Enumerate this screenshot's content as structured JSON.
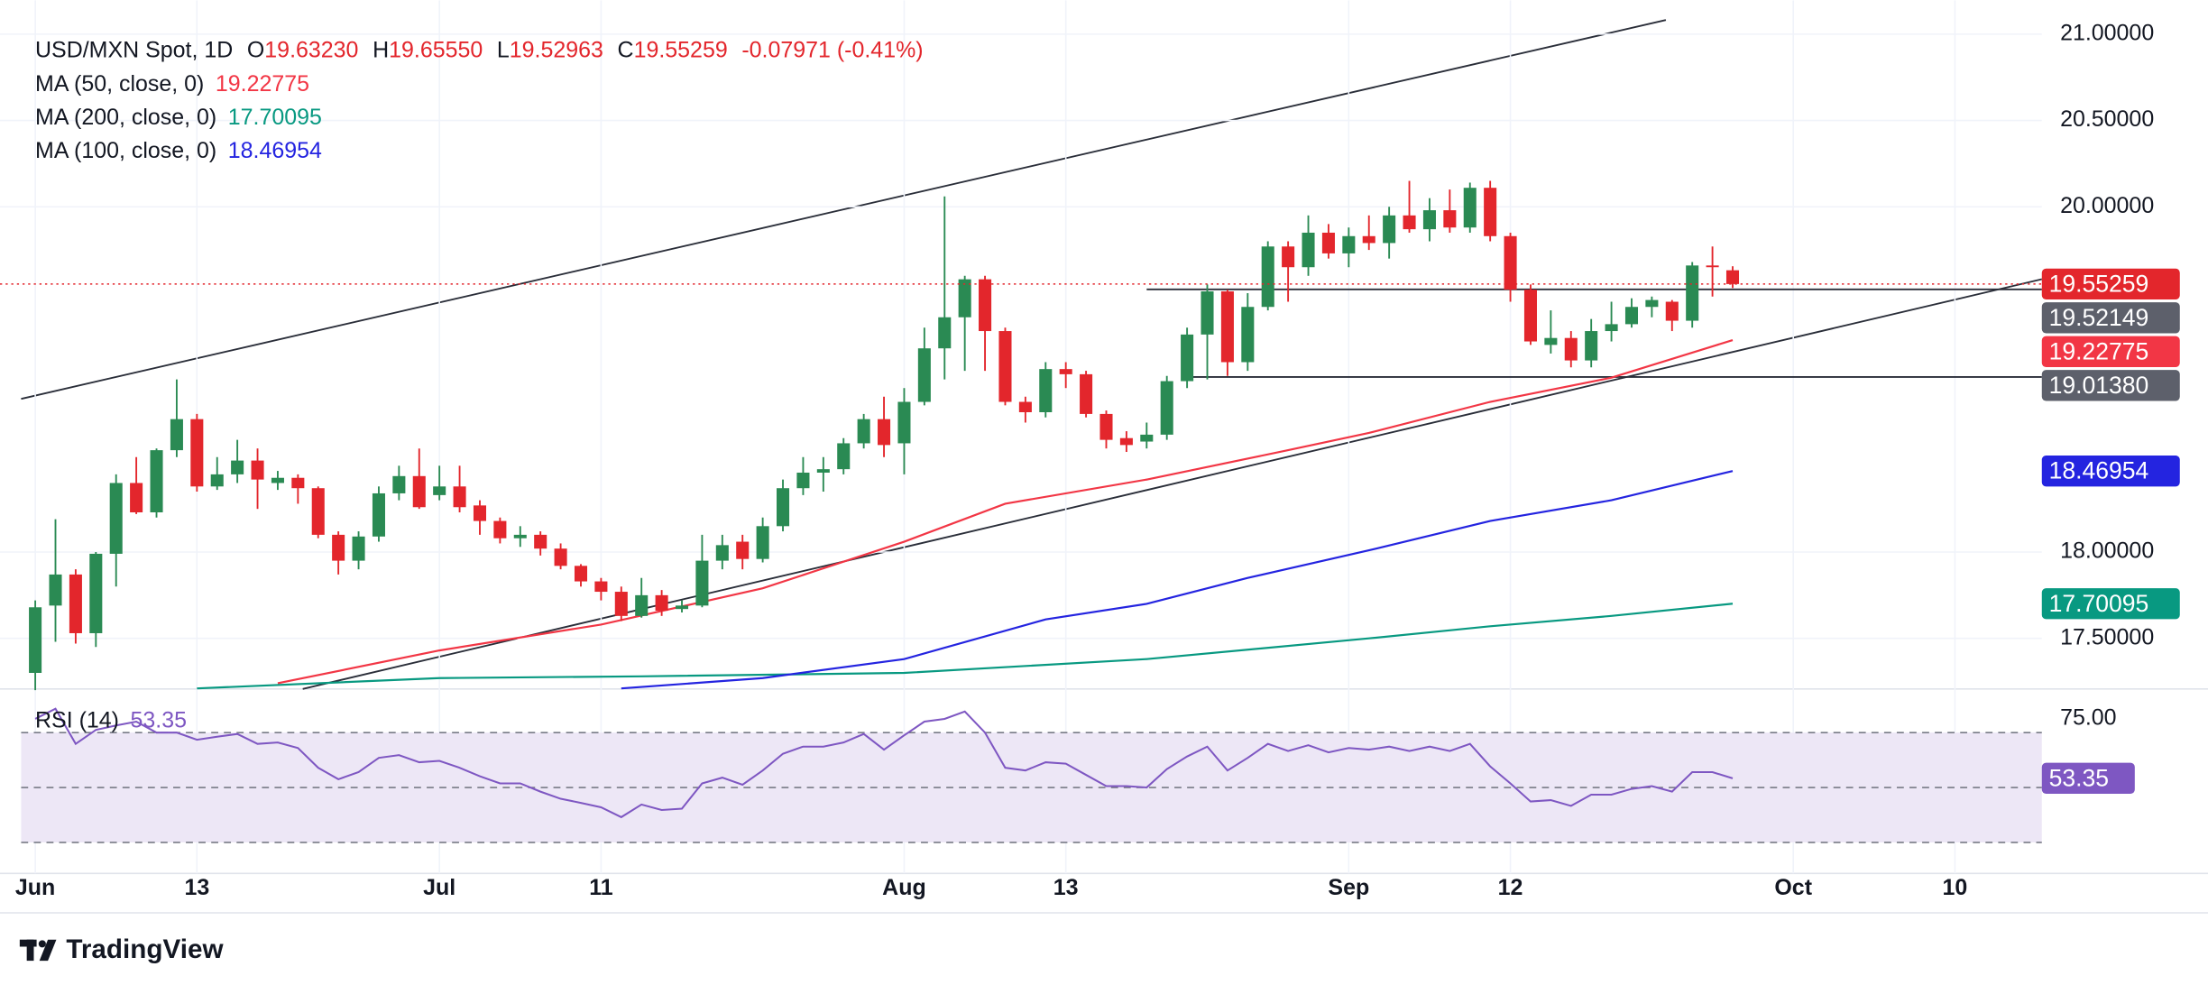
{
  "chart_data": [
    {
      "type": "candlestick",
      "title": "USD/MXN Spot, 1D",
      "ohlc_keys": [
        "O",
        "H",
        "L",
        "C"
      ],
      "ohlc_labels": [
        "19.63230",
        "19.65550",
        "19.52963",
        "19.55259"
      ],
      "change_label": "-0.07971 (-0.41%)",
      "up_color": "#2a8a53",
      "down_color": "#e3262c",
      "open": [
        17.3,
        17.69,
        17.87,
        17.53,
        17.99,
        18.4,
        18.23,
        18.59,
        18.77,
        18.38,
        18.45,
        18.53,
        18.4,
        18.43,
        18.37,
        18.1,
        17.95,
        18.09,
        18.34,
        18.44,
        18.33,
        18.38,
        18.27,
        18.18,
        18.08,
        18.1,
        18.02,
        17.92,
        17.83,
        17.77,
        17.63,
        17.75,
        17.67,
        17.69,
        17.95,
        18.06,
        17.96,
        18.15,
        18.37,
        18.46,
        18.48,
        18.63,
        18.77,
        18.63,
        18.87,
        19.18,
        19.36,
        19.58,
        19.28,
        18.87,
        18.81,
        19.06,
        19.03,
        18.8,
        18.66,
        18.64,
        18.68,
        18.99,
        19.26,
        19.51,
        19.1,
        19.42,
        19.77,
        19.65,
        19.85,
        19.73,
        19.83,
        19.79,
        19.95,
        19.87,
        19.98,
        19.88,
        20.11,
        19.83,
        19.52,
        19.2,
        19.24,
        19.11,
        19.28,
        19.32,
        19.42,
        19.45,
        19.34,
        19.66,
        19.6323
      ],
      "high": [
        17.72,
        18.19,
        17.9,
        18.0,
        18.45,
        18.55,
        18.6,
        19.0,
        18.8,
        18.55,
        18.65,
        18.6,
        18.47,
        18.45,
        18.38,
        18.12,
        18.12,
        18.38,
        18.5,
        18.6,
        18.5,
        18.5,
        18.3,
        18.2,
        18.15,
        18.12,
        18.05,
        17.93,
        17.85,
        17.8,
        17.85,
        17.78,
        17.72,
        18.1,
        18.1,
        18.1,
        18.2,
        18.42,
        18.55,
        18.55,
        18.66,
        18.8,
        18.9,
        18.95,
        19.3,
        20.06,
        19.6,
        19.6,
        19.3,
        18.9,
        19.1,
        19.1,
        19.05,
        18.82,
        18.7,
        18.75,
        19.02,
        19.3,
        19.55,
        19.52,
        19.5,
        19.8,
        19.8,
        19.95,
        19.9,
        19.88,
        19.95,
        20.0,
        20.15,
        20.05,
        20.1,
        20.14,
        20.15,
        19.85,
        19.55,
        19.4,
        19.28,
        19.35,
        19.45,
        19.47,
        19.48,
        19.46,
        19.68,
        19.77,
        19.6555
      ],
      "low": [
        17.2,
        17.48,
        17.47,
        17.45,
        17.8,
        18.22,
        18.2,
        18.55,
        18.35,
        18.36,
        18.4,
        18.25,
        18.36,
        18.28,
        18.08,
        17.87,
        17.9,
        18.06,
        18.3,
        18.25,
        18.3,
        18.23,
        18.1,
        18.05,
        18.03,
        17.98,
        17.9,
        17.8,
        17.72,
        17.6,
        17.62,
        17.63,
        17.65,
        17.68,
        17.9,
        17.9,
        17.94,
        18.12,
        18.33,
        18.35,
        18.45,
        18.6,
        18.55,
        18.45,
        18.85,
        19.0,
        19.05,
        19.05,
        18.85,
        18.75,
        18.78,
        18.95,
        18.78,
        18.6,
        18.58,
        18.6,
        18.65,
        18.95,
        19.0,
        19.02,
        19.05,
        19.4,
        19.45,
        19.6,
        19.7,
        19.65,
        19.75,
        19.7,
        19.85,
        19.8,
        19.85,
        19.85,
        19.8,
        19.45,
        19.2,
        19.15,
        19.07,
        19.07,
        19.22,
        19.3,
        19.36,
        19.28,
        19.3,
        19.48,
        19.52963
      ],
      "close": [
        17.68,
        17.87,
        17.53,
        17.99,
        18.4,
        18.23,
        18.59,
        18.77,
        18.38,
        18.45,
        18.53,
        18.42,
        18.43,
        18.37,
        18.1,
        17.95,
        18.09,
        18.34,
        18.44,
        18.26,
        18.38,
        18.26,
        18.18,
        18.08,
        18.1,
        18.02,
        17.92,
        17.83,
        17.77,
        17.63,
        17.75,
        17.66,
        17.69,
        17.95,
        18.04,
        17.96,
        18.15,
        18.37,
        18.46,
        18.48,
        18.63,
        18.77,
        18.62,
        18.87,
        19.18,
        19.36,
        19.58,
        19.28,
        18.87,
        18.81,
        19.06,
        19.03,
        18.8,
        18.65,
        18.62,
        18.68,
        18.99,
        19.26,
        19.51,
        19.1,
        19.42,
        19.77,
        19.65,
        19.85,
        19.73,
        19.83,
        19.79,
        19.95,
        19.87,
        19.98,
        19.88,
        20.11,
        19.83,
        19.52,
        19.22,
        19.24,
        19.11,
        19.28,
        19.32,
        19.42,
        19.46,
        19.34,
        19.66,
        19.65,
        19.55259
      ],
      "series": [
        {
          "name": "MA (50, close, 0)",
          "color": "#f23645",
          "x": [
            12,
            20,
            28,
            36,
            43,
            48,
            55,
            62,
            66,
            72,
            78,
            84
          ],
          "values": [
            17.24,
            17.43,
            17.58,
            17.79,
            18.06,
            18.28,
            18.42,
            18.59,
            18.69,
            18.87,
            19.01,
            19.22775
          ]
        },
        {
          "name": "MA (200, close, 0)",
          "color": "#089981",
          "x": [
            8,
            20,
            30,
            43,
            55,
            66,
            72,
            78,
            84
          ],
          "values": [
            17.21,
            17.27,
            17.28,
            17.3,
            17.38,
            17.5,
            17.57,
            17.63,
            17.70095
          ]
        },
        {
          "name": "MA (100, close, 0)",
          "color": "#2424e0",
          "x": [
            29,
            36,
            43,
            50,
            55,
            60,
            66,
            72,
            78,
            84
          ],
          "values": [
            17.21,
            17.27,
            17.38,
            17.61,
            17.7,
            17.85,
            18.01,
            18.18,
            18.3,
            18.46954
          ]
        }
      ],
      "levels": [
        19.52149,
        {
          "value": 19.0138,
          "label": "19.01380"
        }
      ],
      "level_color": "#5d606b",
      "xlim": [
        -0.7,
        99.3
      ],
      "xticks": [
        {
          "value": 0,
          "label": "Jun"
        },
        {
          "value": 8,
          "label": "13"
        },
        {
          "value": 20,
          "label": "Jul"
        },
        {
          "value": 28,
          "label": "11"
        },
        {
          "value": 43,
          "label": "Aug"
        },
        {
          "value": 51,
          "label": "13"
        },
        {
          "value": 65,
          "label": "Sep"
        },
        {
          "value": 73,
          "label": "12"
        },
        {
          "value": 87,
          "label": "Oct"
        },
        {
          "value": 95,
          "label": "10"
        }
      ],
      "ylim": [
        17.207,
        21.196
      ],
      "yticks": [
        {
          "value": 21,
          "label": "21.00000"
        },
        {
          "value": 20.5,
          "label": "20.50000"
        },
        {
          "value": 20,
          "label": "20.00000"
        },
        {
          "value": 18,
          "label": "18.00000"
        },
        {
          "value": 17.5,
          "label": "17.50000"
        }
      ],
      "grid": true
    },
    {
      "type": "line",
      "title": "RSI (14)",
      "series": [
        {
          "name": "RSI (14)",
          "color": "#7e57c2",
          "values": [
            75,
            78.7,
            65.9,
            71,
            72.6,
            74,
            70,
            70,
            67.4,
            68.5,
            69.5,
            65.9,
            66.4,
            64.4,
            57.2,
            53,
            55.6,
            60.8,
            61.8,
            59.2,
            59.7,
            57.2,
            54.1,
            51.5,
            51.5,
            48.5,
            45.9,
            44.4,
            42.8,
            39.2,
            43.8,
            41.8,
            42.3,
            51.5,
            53.6,
            51,
            56.2,
            62.3,
            64.9,
            64.9,
            66.4,
            69.5,
            63.8,
            69,
            74,
            75,
            77.7,
            70,
            57.2,
            56.2,
            59.2,
            58.7,
            54.6,
            50.5,
            50.5,
            50,
            56.7,
            61.3,
            64.9,
            56.2,
            60.8,
            65.9,
            63.3,
            65.4,
            62.8,
            64.4,
            63.8,
            64.9,
            63.3,
            64.9,
            63.3,
            65.9,
            57.7,
            51.5,
            44.9,
            45.4,
            43.3,
            47.4,
            47.4,
            49.5,
            50.5,
            48.5,
            55.6,
            55.6,
            53.35
          ]
        }
      ],
      "levels": [
        70,
        50,
        30
      ],
      "band_color": "#ede7f6",
      "ylim": [
        18.7,
        85.9
      ],
      "yticks": [
        {
          "value": 75,
          "label": "75.00"
        }
      ]
    }
  ],
  "brand": "TradingView"
}
